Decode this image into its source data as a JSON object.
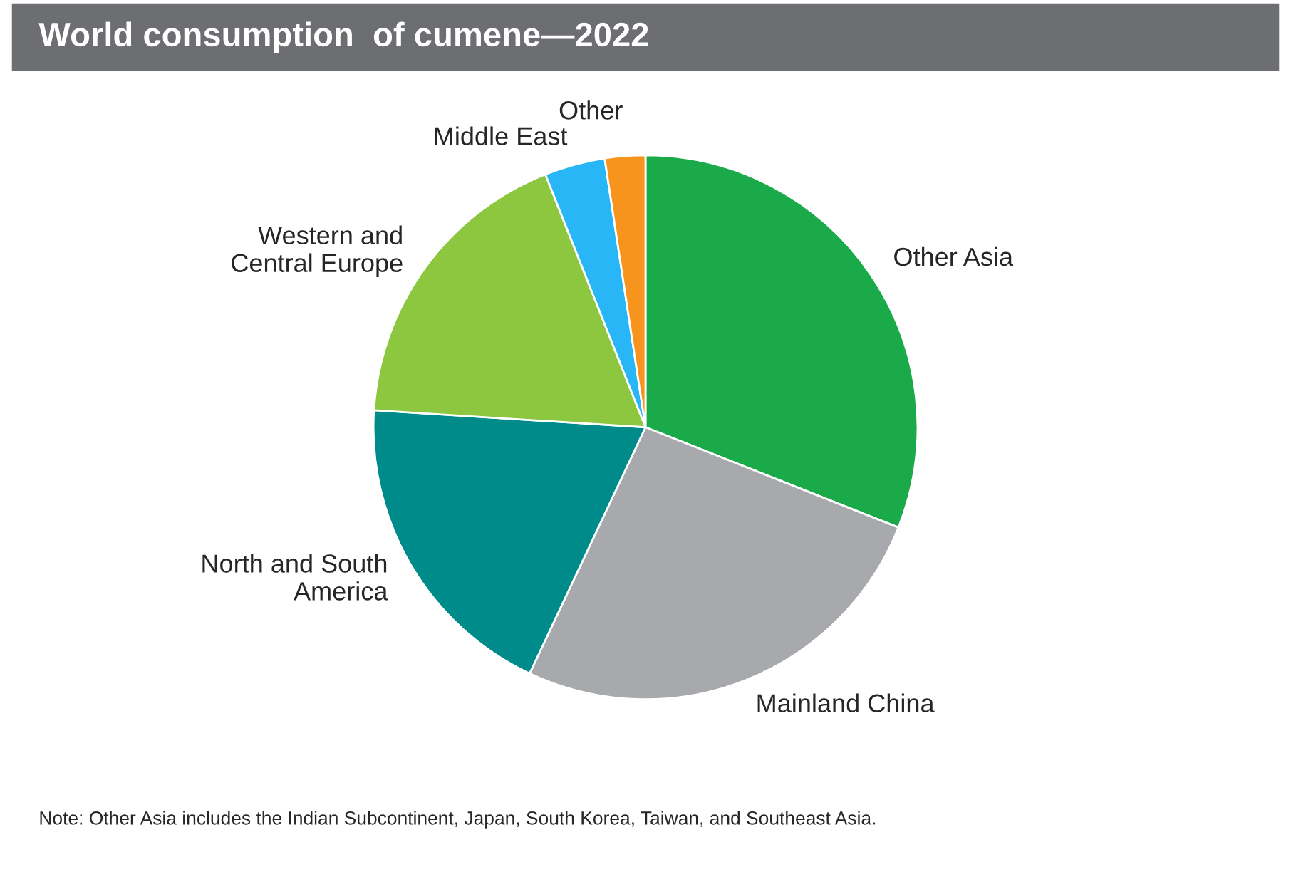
{
  "chart_data": {
    "type": "pie",
    "title": "World consumption  of cumene—2022",
    "categories": [
      "Other Asia",
      "Mainland China",
      "North and South\nAmerica",
      "Western and\nCentral Europe",
      "Middle East",
      "Other"
    ],
    "values": [
      31,
      26,
      19,
      18,
      3.6,
      2.4
    ],
    "colors": [
      "#1aaa4a",
      "#a7a9ac",
      "#008b8b",
      "#8dc63f",
      "#29b6f6",
      "#f7941d"
    ],
    "legend": false,
    "annotations": [
      "Note: Other Asia includes the Indian Subcontinent, Japan, South Korea, Taiwan, and Southeast Asia."
    ]
  }
}
